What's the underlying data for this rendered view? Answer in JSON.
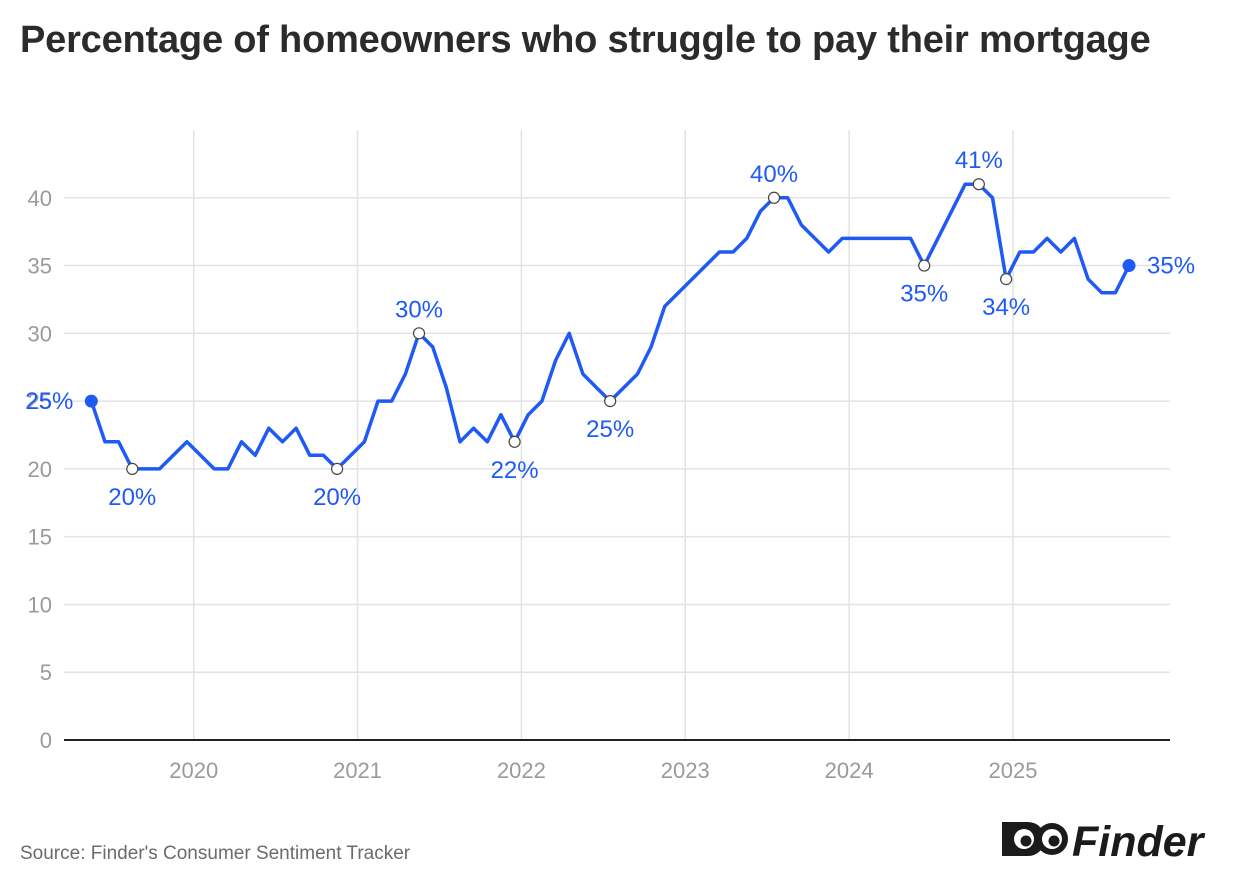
{
  "title": "Percentage of homeowners who struggle to pay their mortgage",
  "source": "Source: Finder's Consumer Sentiment Tracker",
  "brand": {
    "name": "Finder",
    "icon": "finder-eyes-logo-icon"
  },
  "colors": {
    "line": "#1f5af6",
    "grid": "#e3e3e3",
    "axis": "#222222",
    "tick": "#9a9a9a",
    "title": "#2b2b2b"
  },
  "chart_data": {
    "type": "line",
    "title": "Percentage of homeowners who struggle to pay their mortgage",
    "xlabel": "",
    "ylabel": "",
    "x_ticks": [
      "2020",
      "2021",
      "2022",
      "2023",
      "2024",
      "2025"
    ],
    "y_ticks": [
      "0",
      "5",
      "10",
      "15",
      "20",
      "25",
      "30",
      "35",
      "40"
    ],
    "ylim": [
      0,
      45
    ],
    "grid": true,
    "legend": "none",
    "series": [
      {
        "values": [
          [
            "2019-05",
            25
          ],
          [
            "2019-06",
            22
          ],
          [
            "2019-07",
            22
          ],
          [
            "2019-08",
            20
          ],
          [
            "2019-09",
            20
          ],
          [
            "2019-10",
            20
          ],
          [
            "2019-12",
            22
          ],
          [
            "2020-02",
            20
          ],
          [
            "2020-03",
            20
          ],
          [
            "2020-04",
            22
          ],
          [
            "2020-05",
            21
          ],
          [
            "2020-06",
            23
          ],
          [
            "2020-07",
            22
          ],
          [
            "2020-08",
            23
          ],
          [
            "2020-09",
            21
          ],
          [
            "2020-10",
            21
          ],
          [
            "2020-11",
            20
          ],
          [
            "2021-01",
            22
          ],
          [
            "2021-02",
            25
          ],
          [
            "2021-03",
            25
          ],
          [
            "2021-04",
            27
          ],
          [
            "2021-05",
            30
          ],
          [
            "2021-06",
            29
          ],
          [
            "2021-07",
            26
          ],
          [
            "2021-08",
            22
          ],
          [
            "2021-09",
            23
          ],
          [
            "2021-10",
            22
          ],
          [
            "2021-11",
            24
          ],
          [
            "2021-12",
            22
          ],
          [
            "2022-01",
            24
          ],
          [
            "2022-02",
            25
          ],
          [
            "2022-03",
            28
          ],
          [
            "2022-04",
            30
          ],
          [
            "2022-05",
            27
          ],
          [
            "2022-06",
            26
          ],
          [
            "2022-07",
            25
          ],
          [
            "2022-09",
            27
          ],
          [
            "2022-10",
            29
          ],
          [
            "2022-11",
            32
          ],
          [
            "2023-03",
            36
          ],
          [
            "2023-04",
            36
          ],
          [
            "2023-05",
            37
          ],
          [
            "2023-06",
            39
          ],
          [
            "2023-07",
            40
          ],
          [
            "2023-08",
            40
          ],
          [
            "2023-09",
            38
          ],
          [
            "2023-11",
            36
          ],
          [
            "2023-12",
            37
          ],
          [
            "2024-05",
            37
          ],
          [
            "2024-06",
            35
          ],
          [
            "2024-09",
            41
          ],
          [
            "2024-10",
            41
          ],
          [
            "2024-11",
            40
          ],
          [
            "2024-12",
            34
          ],
          [
            "2025-01",
            36
          ],
          [
            "2025-02",
            36
          ],
          [
            "2025-03",
            37
          ],
          [
            "2025-04",
            36
          ],
          [
            "2025-05",
            37
          ],
          [
            "2025-06",
            34
          ],
          [
            "2025-07",
            33
          ],
          [
            "2025-08",
            33
          ],
          [
            "2025-09",
            35
          ]
        ]
      }
    ],
    "annotations": [
      {
        "x": "2019-05",
        "y": 25,
        "text": "25%",
        "marker": "filled",
        "pos": "left"
      },
      {
        "x": "2019-08",
        "y": 20,
        "text": "20%",
        "marker": "hollow",
        "pos": "below"
      },
      {
        "x": "2020-11",
        "y": 20,
        "text": "20%",
        "marker": "hollow",
        "pos": "below"
      },
      {
        "x": "2021-05",
        "y": 30,
        "text": "30%",
        "marker": "hollow",
        "pos": "above"
      },
      {
        "x": "2021-12",
        "y": 22,
        "text": "22%",
        "marker": "hollow",
        "pos": "below"
      },
      {
        "x": "2022-07",
        "y": 25,
        "text": "25%",
        "marker": "hollow",
        "pos": "below"
      },
      {
        "x": "2023-07",
        "y": 40,
        "text": "40%",
        "marker": "hollow",
        "pos": "above"
      },
      {
        "x": "2024-06",
        "y": 35,
        "text": "35%",
        "marker": "hollow",
        "pos": "below"
      },
      {
        "x": "2024-10",
        "y": 41,
        "text": "41%",
        "marker": "hollow",
        "pos": "above"
      },
      {
        "x": "2024-12",
        "y": 34,
        "text": "34%",
        "marker": "hollow",
        "pos": "below"
      },
      {
        "x": "2025-09",
        "y": 35,
        "text": "35%",
        "marker": "filled",
        "pos": "right"
      }
    ]
  }
}
